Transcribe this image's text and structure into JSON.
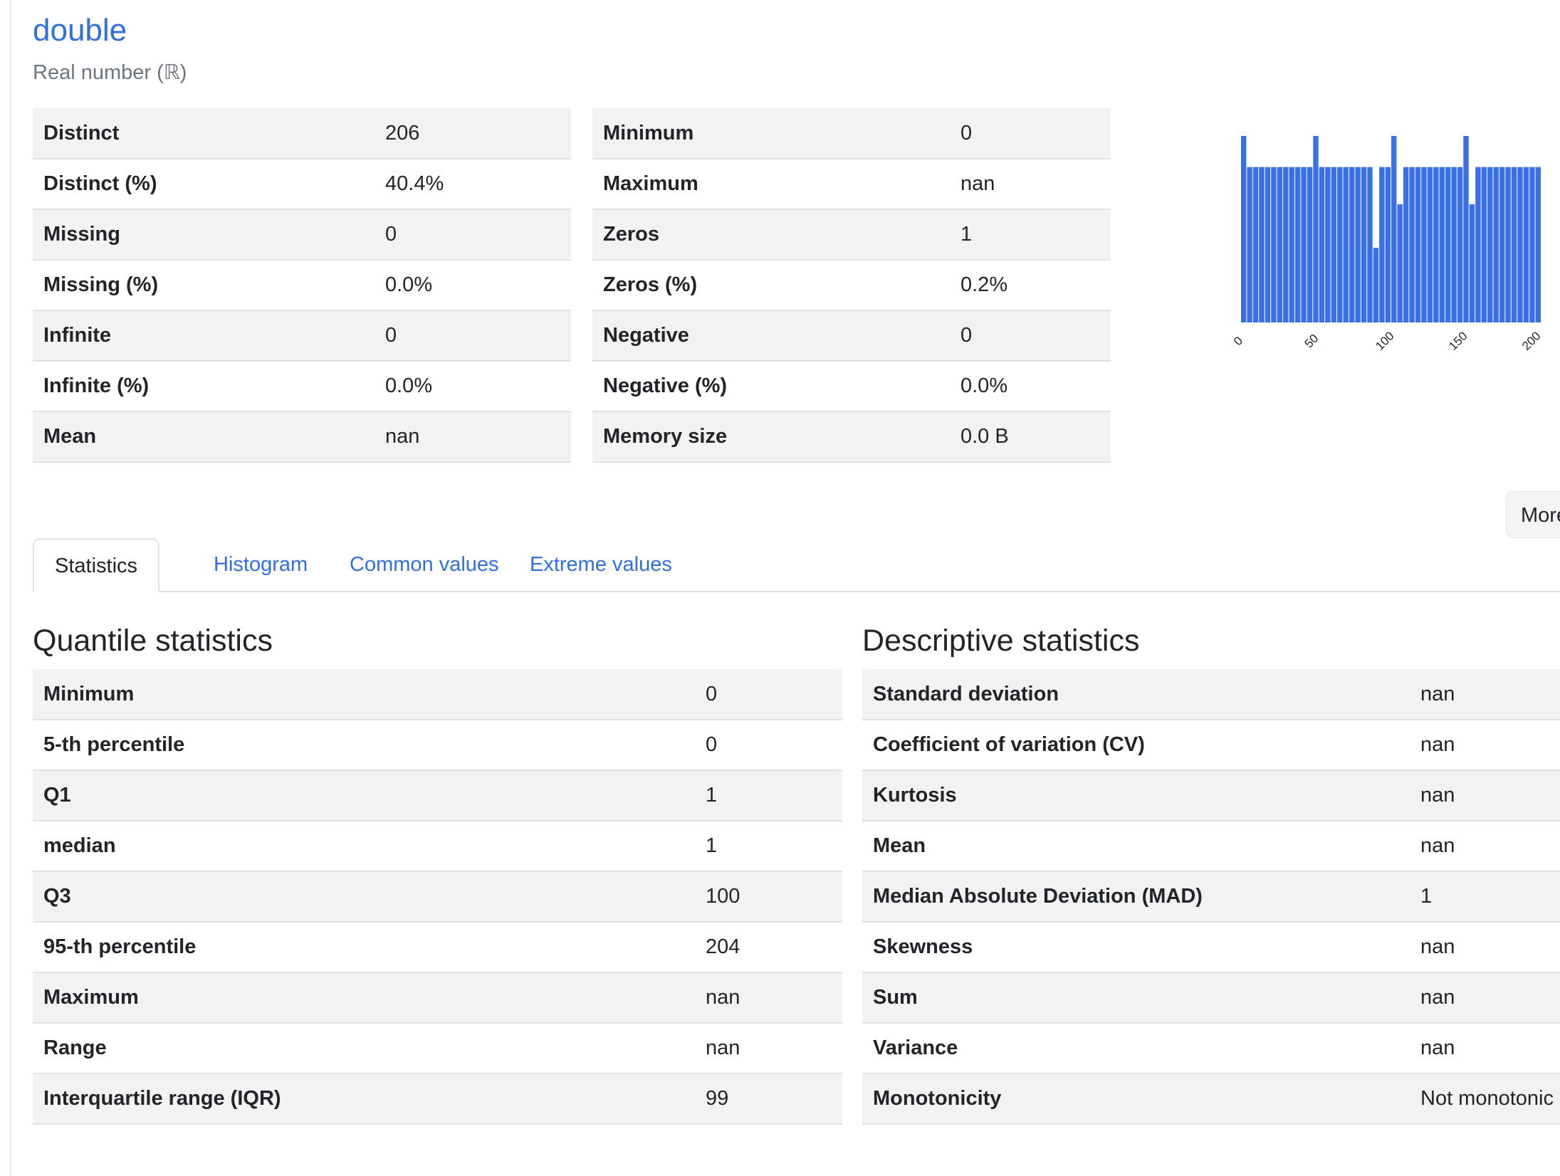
{
  "variable": {
    "name": "double",
    "type": "Real number (ℝ)"
  },
  "overview": {
    "left": [
      {
        "label": "Distinct",
        "value": "206"
      },
      {
        "label": "Distinct (%)",
        "value": "40.4%"
      },
      {
        "label": "Missing",
        "value": "0"
      },
      {
        "label": "Missing (%)",
        "value": "0.0%"
      },
      {
        "label": "Infinite",
        "value": "0"
      },
      {
        "label": "Infinite (%)",
        "value": "0.0%"
      },
      {
        "label": "Mean",
        "value": "nan"
      }
    ],
    "right": [
      {
        "label": "Minimum",
        "value": "0"
      },
      {
        "label": "Maximum",
        "value": "nan"
      },
      {
        "label": "Zeros",
        "value": "1"
      },
      {
        "label": "Zeros (%)",
        "value": "0.2%"
      },
      {
        "label": "Negative",
        "value": "0"
      },
      {
        "label": "Negative (%)",
        "value": "0.0%"
      },
      {
        "label": "Memory size",
        "value": "0.0 B"
      }
    ]
  },
  "mini_histogram": {
    "bar_color": "#3b6fe6",
    "counts": [
      3,
      2.5,
      2.5,
      2.5,
      2.5,
      2.5,
      2.5,
      2.5,
      2.5,
      2.5,
      2.5,
      2.5,
      3,
      2.5,
      2.5,
      2.5,
      2.5,
      2.5,
      2.5,
      2.5,
      2.5,
      2.5,
      1.2,
      2.5,
      2.5,
      3,
      1.9,
      2.5,
      2.5,
      2.5,
      2.5,
      2.5,
      2.5,
      2.5,
      2.5,
      2.5,
      2.5,
      3,
      1.9,
      2.5,
      2.5,
      2.5,
      2.5,
      2.5,
      2.5,
      2.5,
      2.5,
      2.5,
      2.5,
      2.5
    ],
    "x_range": [
      0,
      205
    ],
    "x_ticks": [
      "0",
      "50",
      "100",
      "150",
      "200"
    ]
  },
  "more_button": {
    "label": "More"
  },
  "tabs": [
    {
      "label": "Statistics",
      "active": true
    },
    {
      "label": "Histogram",
      "active": false
    },
    {
      "label": "Common values",
      "active": false
    },
    {
      "label": "Extreme values",
      "active": false
    }
  ],
  "quantile": {
    "title": "Quantile statistics",
    "rows": [
      {
        "label": "Minimum",
        "value": "0"
      },
      {
        "label": "5-th percentile",
        "value": "0"
      },
      {
        "label": "Q1",
        "value": "1"
      },
      {
        "label": "median",
        "value": "1"
      },
      {
        "label": "Q3",
        "value": "100"
      },
      {
        "label": "95-th percentile",
        "value": "204"
      },
      {
        "label": "Maximum",
        "value": "nan"
      },
      {
        "label": "Range",
        "value": "nan"
      },
      {
        "label": "Interquartile range (IQR)",
        "value": "99"
      }
    ]
  },
  "descriptive": {
    "title": "Descriptive statistics",
    "rows": [
      {
        "label": "Standard deviation",
        "value": "nan"
      },
      {
        "label": "Coefficient of variation (CV)",
        "value": "nan"
      },
      {
        "label": "Kurtosis",
        "value": "nan"
      },
      {
        "label": "Mean",
        "value": "nan"
      },
      {
        "label": "Median Absolute Deviation (MAD)",
        "value": "1"
      },
      {
        "label": "Skewness",
        "value": "nan"
      },
      {
        "label": "Sum",
        "value": "nan"
      },
      {
        "label": "Variance",
        "value": "nan"
      },
      {
        "label": "Monotonicity",
        "value": "Not monotonic"
      }
    ]
  }
}
